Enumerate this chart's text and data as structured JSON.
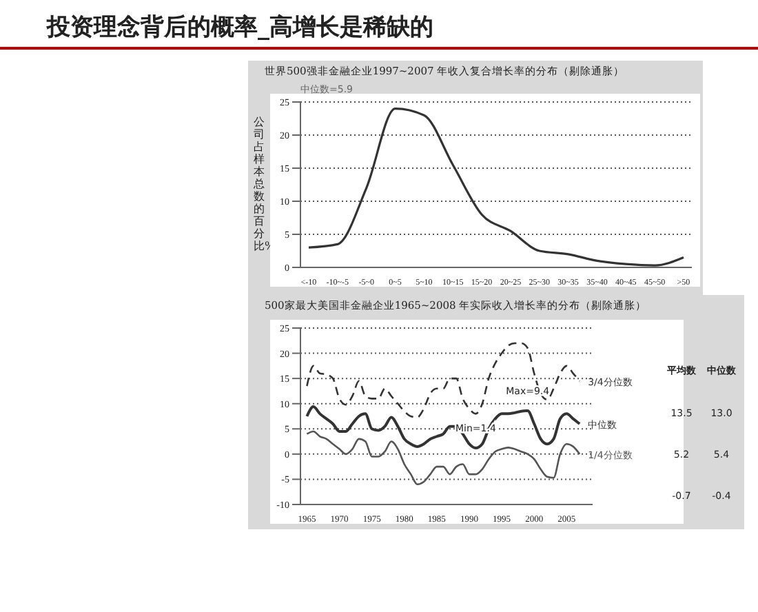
{
  "chart_data": [
    {
      "type": "line",
      "title": "投资理念背后的概率_高增长是稀缺的",
      "subtitle": "世界500强非金融企业1997~2007 年收入复合增长率的分布（剔除通胀）",
      "ylabel": "公司占样本总数的百分比%",
      "annotations": [
        "中位数=5.9"
      ],
      "categories": [
        "<-10",
        "-10~-5",
        "-5~0",
        "0~5",
        "5~10",
        "10~15",
        "15~20",
        "20~25",
        "25~30",
        "30~35",
        "35~40",
        "40~45",
        "45~50",
        ">50"
      ],
      "values": [
        3,
        3.5,
        12,
        24,
        23,
        15.5,
        8,
        5.5,
        2.5,
        2,
        1,
        0.5,
        0.3,
        1.5
      ],
      "color": "#333333",
      "ylim": [
        0,
        25
      ],
      "yticks": [
        0,
        5,
        10,
        15,
        20,
        25
      ],
      "grid": "y",
      "legend": false
    },
    {
      "type": "line",
      "title": "500家最大美国非金融企业1965~2008 年实际收入增长率的分布（剔除通胀）",
      "x": [
        1965,
        1966,
        1967,
        1968,
        1969,
        1970,
        1971,
        1972,
        1973,
        1974,
        1975,
        1976,
        1977,
        1978,
        1979,
        1980,
        1981,
        1982,
        1983,
        1984,
        1985,
        1986,
        1987,
        1988,
        1989,
        1990,
        1991,
        1992,
        1993,
        1994,
        1995,
        1996,
        1997,
        1998,
        1999,
        2000,
        2001,
        2002,
        2003,
        2004,
        2005,
        2006,
        2007
      ],
      "series": [
        {
          "name": "3/4分位数",
          "color": "#333333",
          "line_style": "dashed",
          "values": [
            13.5,
            17.5,
            16,
            15.8,
            15,
            11,
            9.8,
            11.5,
            14.5,
            11.5,
            11,
            11,
            13,
            11.5,
            10,
            8.5,
            7.5,
            7.3,
            9,
            12,
            13,
            13,
            15,
            15,
            11,
            9,
            8,
            10,
            15,
            18,
            20,
            21.5,
            22,
            22,
            21,
            16,
            12,
            10.8,
            13,
            16,
            17.5,
            16,
            14.5
          ]
        },
        {
          "name": "中位数",
          "color": "#333333",
          "line_style": "solid",
          "values": [
            7.5,
            9.4,
            8,
            7,
            6,
            4.5,
            4.5,
            6,
            7.5,
            8,
            5,
            4.7,
            5.5,
            7.3,
            5.5,
            3,
            2,
            1.5,
            2,
            3,
            3.5,
            4,
            5.5,
            5.5,
            4,
            2,
            1.2,
            2,
            5,
            7,
            8,
            8,
            8.2,
            8.5,
            8.6,
            6,
            3,
            2,
            3,
            7,
            8,
            7,
            6
          ]
        },
        {
          "name": "1/4分位数",
          "color": "#555555",
          "line_style": "solid",
          "values": [
            4,
            4.5,
            3.5,
            3,
            2,
            1,
            0,
            1,
            3,
            2.5,
            -0.5,
            -0.5,
            0.5,
            2.5,
            1,
            -2,
            -4,
            -6,
            -5.5,
            -4,
            -2.5,
            -2.5,
            -4,
            -2.5,
            -2,
            -4,
            -4,
            -3,
            -1,
            0.5,
            1,
            1.3,
            1,
            0.5,
            0,
            -1,
            -3,
            -4.5,
            -4.7,
            0,
            2,
            1.5,
            0
          ]
        }
      ],
      "annotations": [
        {
          "text": "Max=9.4",
          "x": 1999,
          "y": 8.6
        },
        {
          "text": "Min=1.4",
          "x": 1991,
          "y": 1.2
        },
        "平均数",
        "中位数",
        "13.5",
        "13.0",
        "5.2",
        "5.4",
        "-0.7",
        "-0.4"
      ],
      "xlim": [
        1964,
        2009
      ],
      "xticks": [
        1965,
        1970,
        1975,
        1980,
        1985,
        1990,
        1995,
        2000,
        2005
      ],
      "ylim": [
        -10,
        25
      ],
      "yticks": [
        -10,
        -5,
        0,
        5,
        10,
        15,
        20,
        25
      ],
      "grid": "y",
      "legend": false
    }
  ]
}
